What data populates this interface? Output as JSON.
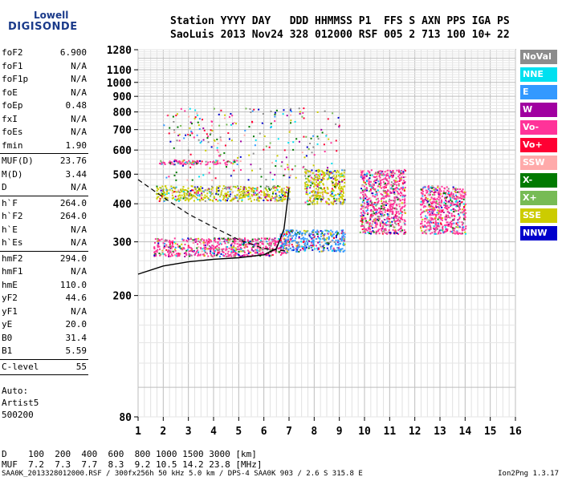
{
  "logo": {
    "line1": "Lowell",
    "line2": "DIGISONDE"
  },
  "header": {
    "labels": "Station YYYY DAY   DDD HHMMSS P1  FFS S AXN PPS IGA PS",
    "values": "SaoLuis 2013 Nov24 328 012000 RSF 005 2 713 100 10+ 22"
  },
  "params": [
    [
      {
        "k": "foF2",
        "v": "6.900"
      },
      {
        "k": "foF1",
        "v": "N/A"
      },
      {
        "k": "foF1p",
        "v": "N/A"
      },
      {
        "k": "foE",
        "v": "N/A"
      },
      {
        "k": "foEp",
        "v": "0.48"
      },
      {
        "k": "fxI",
        "v": "N/A"
      },
      {
        "k": "foEs",
        "v": "N/A"
      },
      {
        "k": "fmin",
        "v": "1.90"
      }
    ],
    [
      {
        "k": "MUF(D)",
        "v": "23.76"
      },
      {
        "k": "M(D)",
        "v": "3.44"
      },
      {
        "k": "D",
        "v": "N/A"
      }
    ],
    [
      {
        "k": "h`F",
        "v": "264.0"
      },
      {
        "k": "h`F2",
        "v": "264.0"
      },
      {
        "k": "h`E",
        "v": "N/A"
      },
      {
        "k": "h`Es",
        "v": "N/A"
      }
    ],
    [
      {
        "k": "hmF2",
        "v": "294.0"
      },
      {
        "k": "hmF1",
        "v": "N/A"
      },
      {
        "k": "hmE",
        "v": "110.0"
      },
      {
        "k": "yF2",
        "v": "44.6"
      },
      {
        "k": "yF1",
        "v": "N/A"
      },
      {
        "k": "yE",
        "v": "20.0"
      },
      {
        "k": "B0",
        "v": "31.4"
      },
      {
        "k": "B1",
        "v": "5.59"
      }
    ],
    [
      {
        "k": "C-level",
        "v": "55"
      }
    ]
  ],
  "auto": {
    "line1": "Auto:",
    "line2": "Artist5",
    "line3": "500200"
  },
  "legend": [
    {
      "label": "NoVal",
      "color": "#8c8c8c"
    },
    {
      "label": "NNE",
      "color": "#00e0f0"
    },
    {
      "label": "E",
      "color": "#3399ff"
    },
    {
      "label": "W",
      "color": "#a000a0"
    },
    {
      "label": "Vo-",
      "color": "#ff3399"
    },
    {
      "label": "Vo+",
      "color": "#ff0033"
    },
    {
      "label": "SSW",
      "color": "#ffaaaa"
    },
    {
      "label": "X-",
      "color": "#007a00"
    },
    {
      "label": "X+",
      "color": "#77bb55"
    },
    {
      "label": "SSE",
      "color": "#cccc00"
    },
    {
      "label": "NNW",
      "color": "#0000cc"
    }
  ],
  "dtable": {
    "d_row": "D    100  200  400  600  800 1000 1500 3000 [km]",
    "muf_row": "MUF  7.2  7.3  7.7  8.3  9.2 10.5 14.2 23.8 [MHz]"
  },
  "footer": {
    "left": "SAA0K_2013328012000.RSF / 300fx256h 50 kHz 5.0 km / DPS-4 SAA0K 903 / 2.6 S 315.8 E",
    "right": "Ion2Png 1.3.17"
  },
  "chart_data": {
    "type": "scatter",
    "xlim": [
      1,
      16
    ],
    "x_ticks": [
      1,
      2,
      3,
      4,
      5,
      6,
      7,
      8,
      9,
      10,
      11,
      12,
      13,
      14,
      15,
      16
    ],
    "y_scale": "log",
    "ylim": [
      80,
      1280
    ],
    "y_ticks": [
      80,
      200,
      300,
      400,
      500,
      600,
      700,
      800,
      900,
      1000,
      1100,
      1280
    ],
    "grid": true,
    "clusters": [
      {
        "name": "F-trace low",
        "x_range": [
          1.6,
          7.0
        ],
        "y_range": [
          270,
          310
        ],
        "dominant_color": "#ff3399"
      },
      {
        "name": "F-trace low 2",
        "x_range": [
          6.6,
          9.2
        ],
        "y_range": [
          280,
          330
        ],
        "dominant_color": "#3399ff"
      },
      {
        "name": "2nd hop",
        "x_range": [
          1.7,
          7.0
        ],
        "y_range": [
          410,
          460
        ],
        "dominant_color": "#cccc00"
      },
      {
        "name": "2nd hop 2",
        "x_range": [
          7.6,
          9.2
        ],
        "y_range": [
          400,
          520
        ],
        "dominant_color": "#cccc00"
      },
      {
        "name": "scatter high",
        "x_range": [
          1.8,
          5.0
        ],
        "y_range": [
          540,
          560
        ],
        "dominant_color": "#ff3399"
      },
      {
        "name": "spread 10-11",
        "x_range": [
          9.8,
          11.6
        ],
        "y_range": [
          320,
          520
        ],
        "dominant_color": "#ff3399"
      },
      {
        "name": "spread 12-14",
        "x_range": [
          12.2,
          14.0
        ],
        "y_range": [
          320,
          460
        ],
        "dominant_color": "#ff3399"
      }
    ],
    "profile_line": {
      "x": [
        1.0,
        2.0,
        3.0,
        4.0,
        5.0,
        6.0,
        6.5,
        6.8,
        7.0
      ],
      "y": [
        235,
        250,
        258,
        263,
        266,
        272,
        285,
        330,
        450
      ]
    },
    "dashed_line": {
      "x": [
        1.0,
        2.0,
        3.0,
        4.0,
        5.0,
        6.0,
        6.9
      ],
      "y": [
        480,
        420,
        370,
        335,
        305,
        285,
        280
      ]
    }
  }
}
